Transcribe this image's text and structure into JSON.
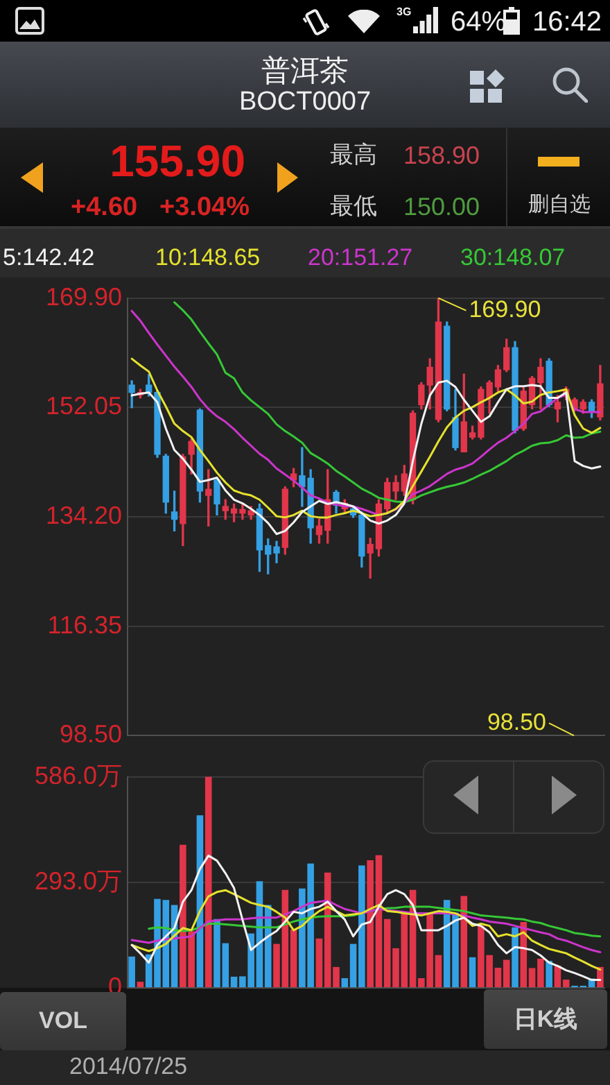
{
  "chart_data": [
    {
      "type": "other",
      "title": "普洱茶",
      "subtitle": "BOCT0007",
      "annotations": [
        "3G",
        "64%",
        "16:42",
        "155.90",
        "+4.60",
        "+3.04%",
        "最高",
        "158.90",
        "最低",
        "150.00",
        "删自选"
      ]
    },
    {
      "type": "candlestick",
      "categories": [
        null,
        null,
        null,
        null,
        null,
        null,
        null,
        null,
        null,
        null,
        null,
        null,
        null,
        null,
        null,
        null,
        null,
        null,
        null,
        null,
        null,
        null,
        null,
        null,
        null,
        null,
        null,
        null,
        null,
        null,
        null,
        null,
        null,
        null,
        null,
        null,
        null,
        null,
        null,
        null,
        null,
        null,
        null,
        null,
        null,
        null,
        null,
        null,
        null,
        null,
        null,
        null,
        null,
        null,
        null,
        null
      ],
      "ohlc": [
        [
          155.7,
          156.4,
          152.0,
          154.5
        ],
        [
          154.1,
          155.0,
          153.6,
          154.5
        ],
        [
          155.7,
          157.4,
          153.9,
          154.5
        ],
        [
          154.5,
          154.8,
          143.9,
          144.4
        ],
        [
          144.1,
          144.4,
          134.8,
          136.6
        ],
        [
          135.0,
          138.4,
          131.9,
          133.8
        ],
        [
          133.1,
          144.4,
          129.5,
          144.0
        ],
        [
          144.4,
          146.9,
          141.2,
          146.5
        ],
        [
          151.6,
          151.8,
          136.6,
          138.4
        ],
        [
          137.7,
          141.9,
          132.7,
          138.7
        ],
        [
          140.2,
          140.5,
          134.5,
          136.3
        ],
        [
          135.2,
          137.0,
          133.8,
          135.9
        ],
        [
          134.8,
          136.3,
          133.4,
          135.5
        ],
        [
          134.8,
          136.3,
          133.8,
          135.4
        ],
        [
          134.5,
          135.9,
          133.8,
          135.2
        ],
        [
          135.5,
          136.3,
          125.3,
          128.8
        ],
        [
          129.5,
          130.6,
          124.9,
          128.1
        ],
        [
          129.3,
          130.2,
          126.7,
          128.3
        ],
        [
          129.2,
          139.1,
          128.1,
          138.7
        ],
        [
          140.2,
          142.1,
          139.1,
          141.2
        ],
        [
          140.9,
          145.5,
          135.9,
          139.1
        ],
        [
          140.5,
          141.9,
          129.9,
          132.4
        ],
        [
          131.3,
          133.8,
          129.9,
          132.7
        ],
        [
          132.0,
          141.9,
          129.9,
          137.0
        ],
        [
          138.2,
          138.5,
          134.8,
          136.1
        ],
        [
          135.5,
          137.0,
          134.8,
          136.4
        ],
        [
          135.5,
          135.9,
          134.1,
          134.5
        ],
        [
          134.5,
          135.0,
          126.0,
          127.8
        ],
        [
          128.3,
          130.7,
          124.2,
          129.7
        ],
        [
          129.0,
          137.0,
          127.8,
          136.3
        ],
        [
          135.5,
          140.5,
          134.8,
          139.8
        ],
        [
          138.4,
          140.9,
          137.0,
          139.8
        ],
        [
          138.4,
          142.6,
          137.7,
          141.2
        ],
        [
          137.0,
          151.5,
          136.3,
          151.1
        ],
        [
          152.5,
          156.1,
          151.8,
          155.7
        ],
        [
          155.7,
          160.0,
          151.8,
          158.6
        ],
        [
          150.1,
          169.9,
          149.7,
          166.0
        ],
        [
          165.3,
          166.0,
          151.5,
          151.8
        ],
        [
          150.4,
          155.0,
          145.1,
          145.5
        ],
        [
          144.8,
          157.5,
          144.8,
          149.7
        ],
        [
          147.2,
          149.0,
          146.9,
          147.9
        ],
        [
          147.2,
          155.4,
          146.9,
          155.0
        ],
        [
          153.6,
          156.4,
          151.1,
          156.1
        ],
        [
          155.4,
          158.9,
          154.7,
          158.2
        ],
        [
          158.2,
          163.2,
          157.9,
          161.8
        ],
        [
          161.8,
          162.8,
          147.9,
          148.3
        ],
        [
          148.6,
          155.4,
          148.3,
          154.7
        ],
        [
          152.5,
          157.1,
          151.8,
          156.8
        ],
        [
          156.1,
          160.0,
          151.8,
          158.6
        ],
        [
          159.6,
          160.0,
          152.2,
          152.5
        ],
        [
          151.8,
          154.0,
          149.7,
          152.9
        ],
        [
          154.0,
          155.4,
          153.3,
          155.0
        ],
        [
          151.8,
          153.6,
          151.5,
          153.3
        ],
        [
          151.8,
          153.3,
          151.1,
          152.9
        ],
        [
          152.9,
          153.3,
          150.4,
          151.3
        ],
        [
          150.5,
          158.9,
          150.0,
          155.9
        ]
      ],
      "colors": [
        "#35a0e4",
        "#e2364b",
        "#35a0e4",
        "#35a0e4",
        "#35a0e4",
        "#35a0e4",
        "#e2364b",
        "#e2364b",
        "#35a0e4",
        "#e2364b",
        "#35a0e4",
        "#e2364b",
        "#e2364b",
        "#e2364b",
        "#e2364b",
        "#35a0e4",
        "#35a0e4",
        "#35a0e4",
        "#e2364b",
        "#e2364b",
        "#35a0e4",
        "#35a0e4",
        "#e2364b",
        "#e2364b",
        "#35a0e4",
        "#e2364b",
        "#35a0e4",
        "#35a0e4",
        "#e2364b",
        "#e2364b",
        "#e2364b",
        "#e2364b",
        "#e2364b",
        "#e2364b",
        "#e2364b",
        "#e2364b",
        "#e2364b",
        "#35a0e4",
        "#35a0e4",
        "#e2364b",
        "#e2364b",
        "#e2364b",
        "#e2364b",
        "#e2364b",
        "#e2364b",
        "#35a0e4",
        "#e2364b",
        "#e2364b",
        "#e2364b",
        "#35a0e4",
        "#e2364b",
        "#e2364b",
        "#e2364b",
        "#e2364b",
        "#35a0e4",
        "#e2364b"
      ],
      "ylim": [
        98.5,
        169.9
      ],
      "yticks": [
        {
          "value": 98.5,
          "label": "98.50"
        },
        116.35,
        {
          "value": 134.2,
          "label": "134.20"
        },
        152.05,
        {
          "value": 169.9,
          "label": "169.90"
        }
      ],
      "grid": "y",
      "tick_labels": "y",
      "legend": "top",
      "series": [
        {
          "type": "line",
          "name": "5:142.42",
          "color": "#f2f2f2",
          "values": [
            154.0,
            154.3,
            154.5,
            152.9,
            148.6,
            145.1,
            143.7,
            141.9,
            139.9,
            140.2,
            140.6,
            138.5,
            137.0,
            136.4,
            135.5,
            134.5,
            133.2,
            131.4,
            131.9,
            133.3,
            135.0,
            135.9,
            136.8,
            136.3,
            136.6,
            136.3,
            135.9,
            134.8,
            133.6,
            133.1,
            133.6,
            134.5,
            136.4,
            143.3,
            149.4,
            154.0,
            156.1,
            156.4,
            155.4,
            153.3,
            151.5,
            149.7,
            150.6,
            152.9,
            155.0,
            155.5,
            155.5,
            155.7,
            155.5,
            153.6,
            153.6,
            154.5,
            143.3,
            142.5,
            142.1,
            142.4
          ]
        },
        {
          "type": "line",
          "name": "10:148.65",
          "color": "#e5e22e",
          "values": [
            160.0,
            158.9,
            157.9,
            154.8,
            152.2,
            149.4,
            148.2,
            147.2,
            145.1,
            143.3,
            141.4,
            139.8,
            138.5,
            138.0,
            137.7,
            137.0,
            135.7,
            134.3,
            134.1,
            134.5,
            135.2,
            134.3,
            134.1,
            134.1,
            134.5,
            134.8,
            135.2,
            134.8,
            134.3,
            134.5,
            134.8,
            135.5,
            136.8,
            139.2,
            141.6,
            144.0,
            146.5,
            148.8,
            150.4,
            151.5,
            152.1,
            152.9,
            153.6,
            154.5,
            155.0,
            154.0,
            152.7,
            153.0,
            154.1,
            154.5,
            154.7,
            155.0,
            150.8,
            148.6,
            147.9,
            148.7
          ]
        },
        {
          "type": "line",
          "name": "20:151.27",
          "color": "#cc35cc",
          "values": [
            167.8,
            166.2,
            164.2,
            162.3,
            160.5,
            158.7,
            157.1,
            155.4,
            153.4,
            151.8,
            150.6,
            149.7,
            148.5,
            147.1,
            145.8,
            144.5,
            143.5,
            142.1,
            141.1,
            140.1,
            139.0,
            137.7,
            137.2,
            136.5,
            136.2,
            135.9,
            135.9,
            135.5,
            135.0,
            134.5,
            134.8,
            135.4,
            136.5,
            137.9,
            138.5,
            139.2,
            140.2,
            141.2,
            141.9,
            142.3,
            142.9,
            144.0,
            145.2,
            146.3,
            147.1,
            148.2,
            149.4,
            151.0,
            151.4,
            152.5,
            153.6,
            154.1,
            151.8,
            151.3,
            151.3,
            151.3
          ]
        },
        {
          "type": "line",
          "name": "30:148.07",
          "color": "#36c836",
          "values": [
            null,
            null,
            null,
            null,
            null,
            169.2,
            167.9,
            166.4,
            164.4,
            162.5,
            160.7,
            157.7,
            156.8,
            154.5,
            153.2,
            152.1,
            151.0,
            149.3,
            148.2,
            147.3,
            146.3,
            144.6,
            143.8,
            142.9,
            141.7,
            140.8,
            139.8,
            138.8,
            138.1,
            137.3,
            137.0,
            136.7,
            136.6,
            137.0,
            137.7,
            138.2,
            138.7,
            139.1,
            139.4,
            139.8,
            140.4,
            141.1,
            141.7,
            142.5,
            143.3,
            144.3,
            145.0,
            145.8,
            146.2,
            146.3,
            146.7,
            147.5,
            147.1,
            147.2,
            147.8,
            148.1
          ]
        }
      ],
      "annotations": [
        "169.90",
        "98.50"
      ]
    },
    {
      "type": "bar",
      "categories": [
        null,
        null,
        null,
        null,
        null,
        null,
        null,
        null,
        null,
        null,
        null,
        null,
        null,
        null,
        null,
        null,
        null,
        null,
        null,
        null,
        null,
        null,
        null,
        null,
        null,
        null,
        null,
        null,
        null,
        null,
        null,
        null,
        null,
        null,
        null,
        null,
        null,
        null,
        null,
        null,
        null,
        null,
        null,
        null,
        null,
        null,
        null,
        null,
        null,
        null,
        null,
        null,
        null,
        null,
        null,
        null
      ],
      "ylim": [
        0,
        586
      ],
      "yticks": [
        0,
        {
          "value": 293,
          "label": "293.0万"
        },
        {
          "value": 586,
          "label": "586.0万"
        }
      ],
      "grid": "y",
      "tick_labels": "y",
      "series": [
        {
          "type": "bar",
          "colors": [
            "#35a0e4",
            "#e2364b",
            "#35a0e4",
            "#35a0e4",
            "#35a0e4",
            "#35a0e4",
            "#e2364b",
            "#e2364b",
            "#35a0e4",
            "#e2364b",
            "#35a0e4",
            "#35a0e4",
            "#35a0e4",
            "#35a0e4",
            "#35a0e4",
            "#35a0e4",
            "#35a0e4",
            "#e2364b",
            "#e2364b",
            "#e2364b",
            "#35a0e4",
            "#35a0e4",
            "#e2364b",
            "#e2364b",
            "#e2364b",
            "#35a0e4",
            "#35a0e4",
            "#35a0e4",
            "#e2364b",
            "#e2364b",
            "#e2364b",
            "#e2364b",
            "#e2364b",
            "#e2364b",
            "#e2364b",
            "#e2364b",
            "#e2364b",
            "#35a0e4",
            "#35a0e4",
            "#e2364b",
            "#35a0e4",
            "#e2364b",
            "#e2364b",
            "#e2364b",
            "#e2364b",
            "#35a0e4",
            "#e2364b",
            "#e2364b",
            "#e2364b",
            "#35a0e4",
            "#e2364b",
            "#e2364b",
            "#35a0e4",
            "#35a0e4",
            "#35a0e4",
            "#e2364b"
          ],
          "values": [
            87,
            17,
            93,
            247,
            244,
            230,
            397,
            157,
            479,
            586,
            191,
            124,
            31,
            32,
            151,
            296,
            230,
            122,
            272,
            162,
            276,
            345,
            137,
            320,
            58,
            27,
            122,
            340,
            354,
            368,
            191,
            110,
            209,
            272,
            27,
            209,
            91,
            244,
            209,
            255,
            85,
            172,
            91,
            56,
            78,
            168,
            183,
            55,
            81,
            75,
            62,
            23,
            6,
            6,
            26,
            58
          ]
        },
        {
          "type": "line",
          "color": "#f2f2f2",
          "values": [
            119,
            96,
            70,
            119,
            143,
            166,
            239,
            271,
            330,
            367,
            353,
            318,
            277,
            189,
            105,
            125,
            143,
            158,
            184,
            211,
            207,
            219,
            225,
            239,
            213,
            190,
            143,
            176,
            183,
            225,
            260,
            271,
            260,
            230,
            160,
            160,
            160,
            172,
            187,
            195,
            178,
            172,
            154,
            119,
            96,
            113,
            110,
            105,
            90,
            70,
            61,
            49,
            41,
            32,
            22,
            22
          ]
        },
        {
          "type": "line",
          "color": "#e5e22e",
          "values": [
            119,
            110,
            102,
            110,
            122,
            145,
            166,
            160,
            213,
            254,
            266,
            271,
            260,
            248,
            236,
            230,
            225,
            211,
            195,
            160,
            172,
            195,
            213,
            225,
            213,
            201,
            204,
            207,
            219,
            230,
            213,
            211,
            207,
            204,
            201,
            207,
            213,
            211,
            207,
            195,
            172,
            178,
            172,
            143,
            149,
            143,
            154,
            131,
            119,
            108,
            102,
            96,
            84,
            73,
            61,
            51
          ]
        },
        {
          "type": "line",
          "color": "#cc35cc",
          "values": [
            133,
            129,
            125,
            131,
            135,
            137,
            140,
            143,
            166,
            184,
            187,
            190,
            190,
            190,
            193,
            195,
            195,
            195,
            204,
            213,
            225,
            236,
            239,
            242,
            230,
            219,
            213,
            207,
            213,
            219,
            215,
            213,
            211,
            207,
            207,
            207,
            207,
            207,
            204,
            201,
            195,
            190,
            184,
            181,
            178,
            172,
            166,
            160,
            154,
            149,
            137,
            131,
            122,
            113,
            105,
            99
          ]
        },
        {
          "type": "line",
          "color": "#36c836",
          "values": [
            null,
            null,
            164,
            168,
            166,
            160,
            158,
            160,
            168,
            178,
            178,
            176,
            174,
            172,
            170,
            168,
            168,
            168,
            176,
            184,
            190,
            195,
            198,
            199,
            199,
            199,
            201,
            207,
            213,
            219,
            221,
            222,
            225,
            225,
            225,
            225,
            222,
            219,
            216,
            213,
            207,
            201,
            199,
            197,
            195,
            192,
            190,
            184,
            180,
            172,
            166,
            160,
            152,
            149,
            145,
            143
          ]
        }
      ],
      "annotations": [
        "VOL",
        "日K线",
        "2014/07/25"
      ]
    }
  ]
}
